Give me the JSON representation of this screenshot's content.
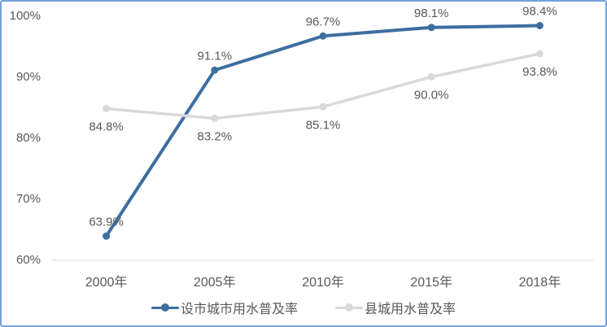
{
  "chart_data": {
    "type": "line",
    "title": "",
    "categories": [
      "2000年",
      "2005年",
      "2010年",
      "2015年",
      "2018年"
    ],
    "series": [
      {
        "name": "设市城市用水普及率",
        "color": "#3D6E9F",
        "values": [
          63.9,
          91.1,
          96.7,
          98.1,
          98.4
        ],
        "data_labels": [
          "63.9%",
          "91.1%",
          "96.7%",
          "98.1%",
          "98.4%"
        ],
        "label_position": "above",
        "line_width": 4,
        "marker_radius": 4.5
      },
      {
        "name": "县城用水普及率",
        "color": "#D9D9D9",
        "values": [
          84.8,
          83.2,
          85.1,
          90.0,
          93.8
        ],
        "data_labels": [
          "84.8%",
          "83.2%",
          "85.1%",
          "90.0%",
          "93.8%"
        ],
        "label_position": "below",
        "line_width": 3.5,
        "marker_radius": 4.5
      }
    ],
    "y_axis": {
      "min": 60,
      "max": 100,
      "ticks": [
        {
          "value": 100,
          "label": "100%"
        },
        {
          "value": 90,
          "label": "90%"
        },
        {
          "value": 80,
          "label": "80%"
        },
        {
          "value": 70,
          "label": "70%"
        },
        {
          "value": 60,
          "label": "60%"
        }
      ]
    },
    "grid": false,
    "legend_position": "bottom",
    "colors": {
      "text": "#595959",
      "axis_line": "#D9D9D9",
      "frame_border": "#74A3DD",
      "background": "#FFFFFF"
    }
  }
}
